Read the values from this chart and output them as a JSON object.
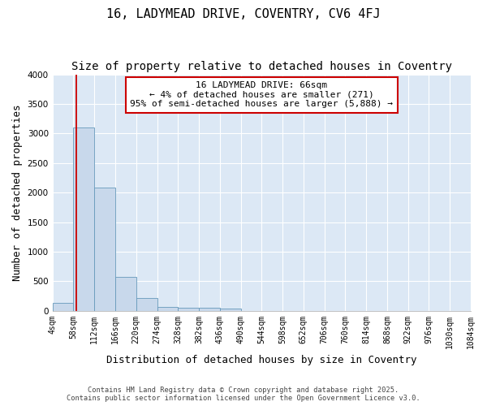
{
  "title": "16, LADYMEAD DRIVE, COVENTRY, CV6 4FJ",
  "subtitle": "Size of property relative to detached houses in Coventry",
  "xlabel": "Distribution of detached houses by size in Coventry",
  "ylabel": "Number of detached properties",
  "bin_labels": [
    "4sqm",
    "58sqm",
    "112sqm",
    "166sqm",
    "220sqm",
    "274sqm",
    "328sqm",
    "382sqm",
    "436sqm",
    "490sqm",
    "544sqm",
    "598sqm",
    "652sqm",
    "706sqm",
    "760sqm",
    "814sqm",
    "868sqm",
    "922sqm",
    "976sqm",
    "1030sqm",
    "1084sqm"
  ],
  "bin_edges": [
    4,
    58,
    112,
    166,
    220,
    274,
    328,
    382,
    436,
    490,
    544,
    598,
    652,
    706,
    760,
    814,
    868,
    922,
    976,
    1030,
    1084
  ],
  "bar_values": [
    130,
    3100,
    2090,
    570,
    210,
    70,
    50,
    50,
    40,
    0,
    0,
    0,
    0,
    0,
    0,
    0,
    0,
    0,
    0,
    0
  ],
  "bar_color": "#c8d8eb",
  "bar_edge_color": "#6699bb",
  "red_line_x": 66,
  "annotation_line1": "16 LADYMEAD DRIVE: 66sqm",
  "annotation_line2": "← 4% of detached houses are smaller (271)",
  "annotation_line3": "95% of semi-detached houses are larger (5,888) →",
  "annotation_box_color": "#ffffff",
  "annotation_box_edge": "#cc0000",
  "ylim": [
    0,
    4000
  ],
  "xlim_left": 4,
  "xlim_right": 1084,
  "fig_background": "#ffffff",
  "plot_background": "#dce8f5",
  "grid_color": "#ffffff",
  "footer_line1": "Contains HM Land Registry data © Crown copyright and database right 2025.",
  "footer_line2": "Contains public sector information licensed under the Open Government Licence v3.0.",
  "title_fontsize": 11,
  "subtitle_fontsize": 10,
  "axis_label_fontsize": 9,
  "tick_fontsize": 7,
  "annotation_fontsize": 8
}
